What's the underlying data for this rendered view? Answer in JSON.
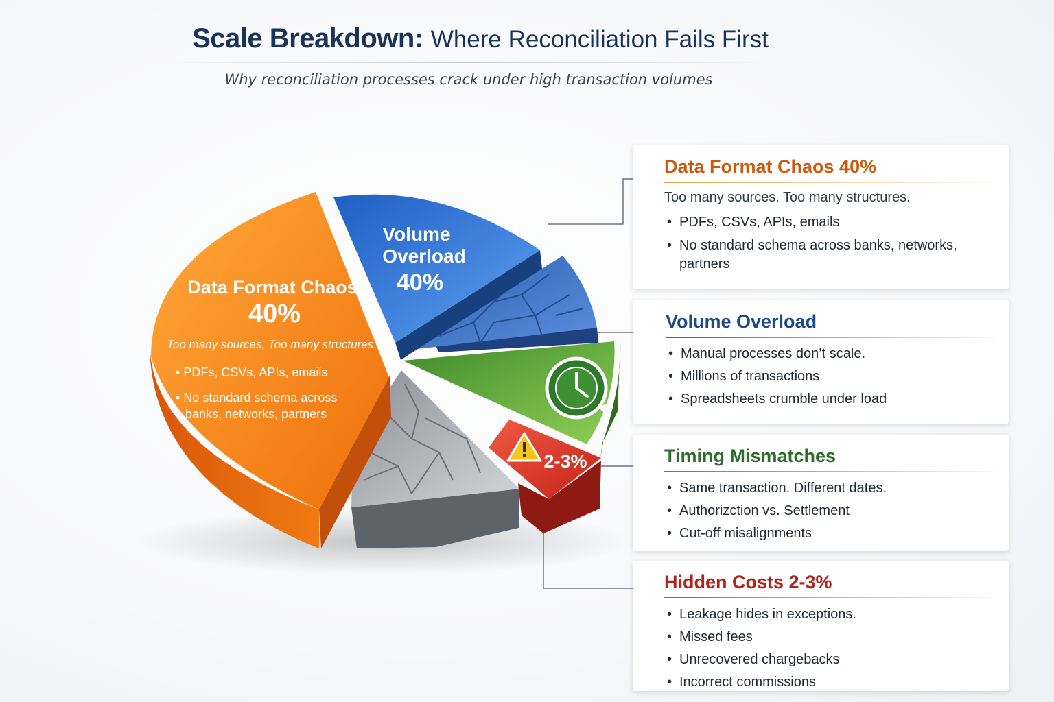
{
  "header": {
    "title_bold": "Scale Breakdown:",
    "title_light": "Where Reconciliation Fails First",
    "subtitle": "Why reconciliation processes crack under high transaction volumes"
  },
  "chart_data": {
    "type": "pie",
    "title": "Scale Breakdown: Where Reconciliation Fails First",
    "subtitle": "Why reconciliation processes crack under high transaction volumes",
    "slices": [
      {
        "name": "Data Format Chaos",
        "value_label": "40%",
        "color": "#f07d15"
      },
      {
        "name": "Volume Overload",
        "value_label": "40%",
        "color": "#2f73d8"
      },
      {
        "name": "",
        "value_label": "",
        "color": "#3f74c6"
      },
      {
        "name": "",
        "value_label": "",
        "color": "#56a334"
      },
      {
        "name": "",
        "value_label": "2-3%",
        "color": "#d8362c"
      },
      {
        "name": "",
        "value_label": "",
        "color": "#a9adb3"
      }
    ],
    "pie_labels": {
      "data_format": {
        "name": "Data Format Chaos",
        "value": "40%",
        "lead": "Too many sources, Too many structures.",
        "bullets": [
          "PDFs, CSVs, APIs, emails",
          "No standard schema across",
          "banks, networks, partners"
        ]
      },
      "volume": {
        "line1": "Volume",
        "line2": "Overload",
        "value": "40%"
      },
      "hidden": {
        "value": "2-3%"
      }
    },
    "icons": [
      "clock-icon",
      "warning-icon"
    ]
  },
  "cards": {
    "data_format": {
      "title": "Data Format Chaos  40%",
      "lead": "Too many sources. Too many structures.",
      "bullets": [
        "PDFs, CSVs, APIs, emails",
        "No standard schema across banks, networks, partners"
      ]
    },
    "volume": {
      "title": "Volume Overload",
      "bullets": [
        "Manual processes don’t scale.",
        "Millions of transactions",
        "Spreadsheets crumble under load"
      ]
    },
    "timing": {
      "title": "Timing Mismatches",
      "bullets": [
        "Same transaction. Different dates.",
        "Authorizction vs. Settlement",
        "Cut-off misalignments"
      ]
    },
    "hidden": {
      "title": "Hidden Costs  2-3%",
      "bullets": [
        "Leakage hides in exceptions.",
        "Missed fees",
        "Unrecovered chargebacks",
        "Incorrect commissions"
      ]
    }
  },
  "colors": {
    "title": "#1a3358",
    "orange": "#f07d15",
    "blue": "#2f73d8",
    "green": "#56a334",
    "red": "#d8362c",
    "gray": "#a9adb3"
  }
}
